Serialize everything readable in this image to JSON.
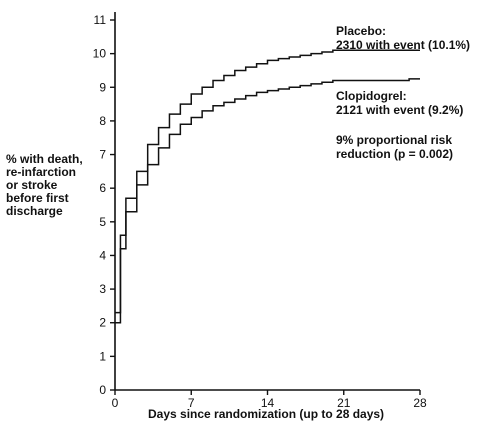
{
  "chart_data": {
    "type": "line",
    "xlabel": "Days since randomization (up to 28 days)",
    "ylabel_lines": [
      "% with death,",
      "re-infarction",
      "or stroke",
      "before first",
      "discharge"
    ],
    "xlim": [
      0,
      28
    ],
    "ylim": [
      0,
      11
    ],
    "x_ticks": [
      0,
      7,
      14,
      21,
      28
    ],
    "y_ticks": [
      0,
      1,
      2,
      3,
      4,
      5,
      6,
      7,
      8,
      9,
      10,
      11
    ],
    "step": true,
    "series": [
      {
        "name": "Placebo",
        "color": "#111111",
        "x": [
          0,
          0.5,
          1,
          2,
          3,
          4,
          5,
          6,
          7,
          8,
          9,
          10,
          11,
          12,
          13,
          14,
          15,
          16,
          17,
          18,
          19,
          20,
          21,
          28
        ],
        "y": [
          2.3,
          4.6,
          5.7,
          6.5,
          7.3,
          7.8,
          8.2,
          8.5,
          8.8,
          9.0,
          9.2,
          9.35,
          9.5,
          9.6,
          9.7,
          9.8,
          9.85,
          9.9,
          9.95,
          10.0,
          10.05,
          10.1,
          10.1,
          10.1
        ]
      },
      {
        "name": "Clopidogrel",
        "color": "#111111",
        "x": [
          0,
          0.5,
          1,
          2,
          3,
          4,
          5,
          6,
          7,
          8,
          9,
          10,
          11,
          12,
          13,
          14,
          15,
          16,
          17,
          18,
          19,
          20,
          21,
          27,
          28
        ],
        "y": [
          2.0,
          4.2,
          5.3,
          6.1,
          6.7,
          7.2,
          7.6,
          7.9,
          8.1,
          8.3,
          8.45,
          8.55,
          8.65,
          8.75,
          8.85,
          8.9,
          8.95,
          9.0,
          9.05,
          9.1,
          9.15,
          9.2,
          9.2,
          9.25,
          9.25
        ]
      }
    ],
    "annotations": {
      "placebo_name": "Placebo:",
      "placebo_events": "2310 with event (10.1%)",
      "clopidogrel_name": "Clopidogrel:",
      "clopidogrel_events": "2121 with event (9.2%)",
      "risk_line1": "9% proportional risk",
      "risk_line2": "reduction (p = 0.002)"
    }
  }
}
